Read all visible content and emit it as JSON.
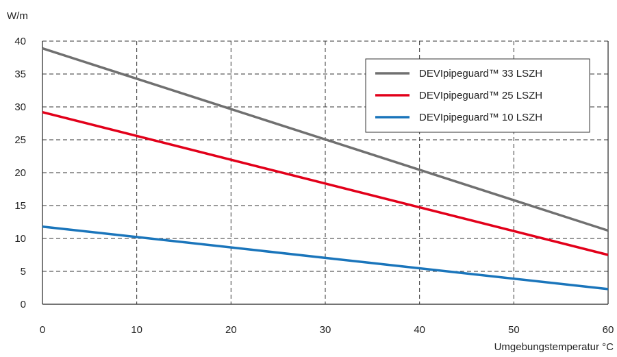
{
  "chart_data": {
    "type": "line",
    "ylabel": "W/m",
    "xlabel": "Umgebungstemperatur °C",
    "xlim": [
      0,
      60
    ],
    "ylim": [
      0,
      40
    ],
    "xticks": [
      0,
      10,
      20,
      30,
      40,
      50,
      60
    ],
    "yticks": [
      0,
      5,
      10,
      15,
      20,
      25,
      30,
      35,
      40
    ],
    "grid": true,
    "legend_position": "top-right",
    "series": [
      {
        "name": "DEVIpipeguard™ 33 LSZH",
        "color": "#707070",
        "x": [
          0,
          60
        ],
        "y": [
          38.9,
          11.2
        ]
      },
      {
        "name": "DEVIpipeguard™ 25 LSZH",
        "color": "#e2001a",
        "x": [
          0,
          60
        ],
        "y": [
          29.2,
          7.5
        ]
      },
      {
        "name": "DEVIpipeguard™ 10 LSZH",
        "color": "#1a75bb",
        "x": [
          0,
          60
        ],
        "y": [
          11.8,
          2.3
        ]
      }
    ]
  }
}
